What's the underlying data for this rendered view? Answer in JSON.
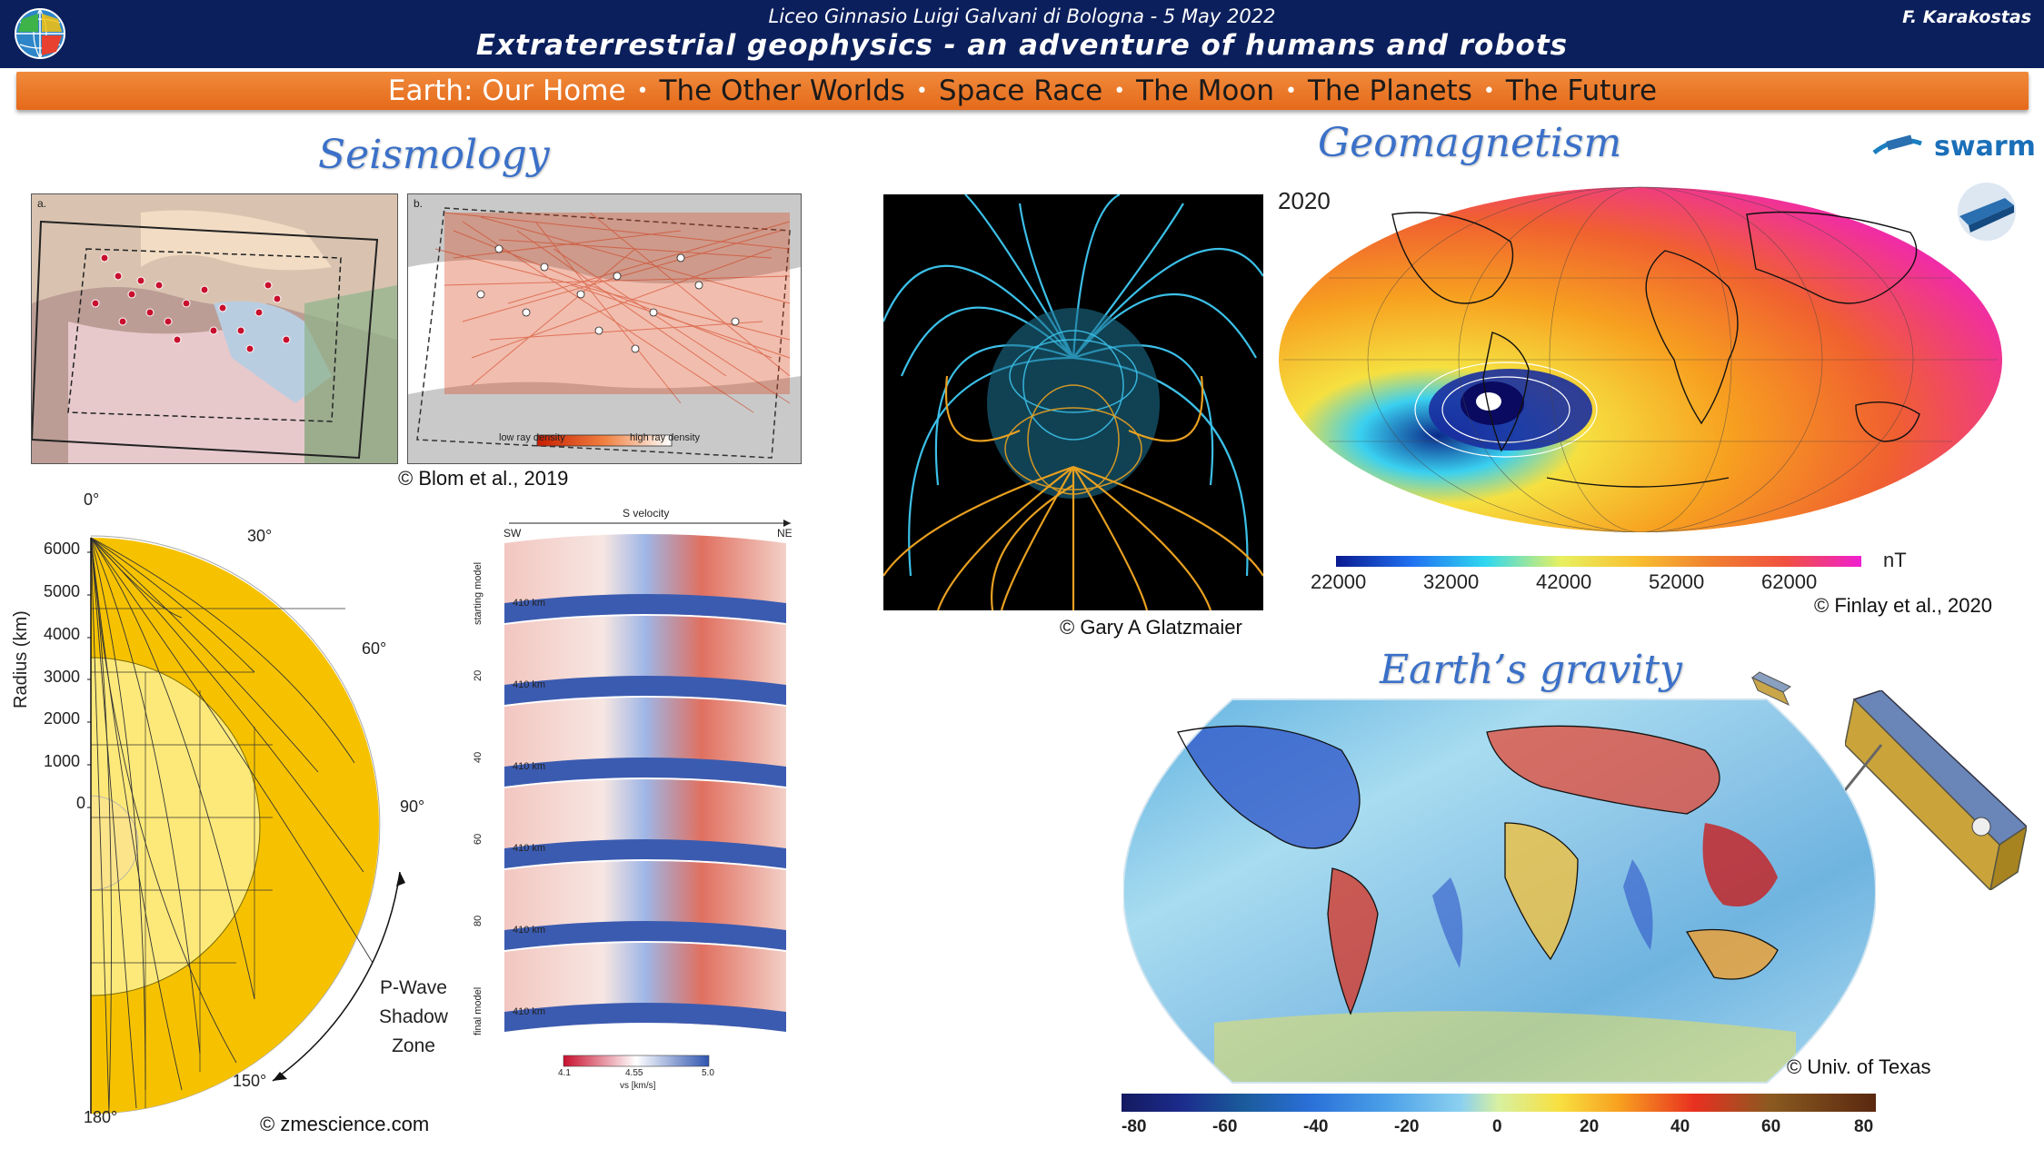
{
  "header": {
    "school": "Liceo Ginnasio Luigi Galvani di Bologna - 5 May 2022",
    "title": "Extraterrestrial geophysics - an adventure of humans and robots",
    "author": "F. Karakostas"
  },
  "nav": {
    "items": [
      {
        "label": "Earth: Our Home",
        "active": true
      },
      {
        "label": "The Other Worlds",
        "active": false
      },
      {
        "label": "Space Race",
        "active": false
      },
      {
        "label": "The Moon",
        "active": false
      },
      {
        "label": "The Planets",
        "active": false
      },
      {
        "label": "The Future",
        "active": false
      }
    ],
    "separator": "•"
  },
  "seismology": {
    "title": "Seismology",
    "map_a_label": "a.",
    "map_b_label": "b.",
    "low_ray": "low ray density",
    "high_ray": "high ray density",
    "credit_blom": "© Blom et al., 2019",
    "credit_zme": "© zmescience.com",
    "shadow": {
      "line1": "P-Wave",
      "line2": "Shadow",
      "line3": "Zone"
    },
    "radius_label": "Radius (km)",
    "radius_ticks": [
      "6000",
      "5000",
      "4000",
      "3000",
      "2000",
      "1000",
      "0"
    ],
    "angle_labels": [
      "0°",
      "30°",
      "60°",
      "90°",
      "150°",
      "180°"
    ],
    "sections": {
      "title": "S velocity",
      "sw": "SW",
      "ne": "NE",
      "depth": "410 km",
      "row_labels": [
        "starting model",
        "20",
        "40",
        "60",
        "80",
        "final model"
      ],
      "cb_min": "4.1",
      "cb_mid": "4.55",
      "cb_max": "5.0",
      "cb_unit": "vs [km/s]"
    }
  },
  "geomagnetism": {
    "title": "Geomagnetism",
    "year": "2020",
    "swarm": "swarm",
    "colorbar_ticks": [
      "22000",
      "32000",
      "42000",
      "52000",
      "62000"
    ],
    "unit": "nT",
    "credit_glatz": "© Gary A Glatzmaier",
    "credit_finlay": "© Finlay et al., 2020"
  },
  "gravity": {
    "title": "Earth’s gravity",
    "credit": "© Univ. of Texas",
    "colorbar_ticks": [
      "-80",
      "-60",
      "-40",
      "-20",
      "0",
      "20",
      "40",
      "60",
      "80"
    ]
  }
}
